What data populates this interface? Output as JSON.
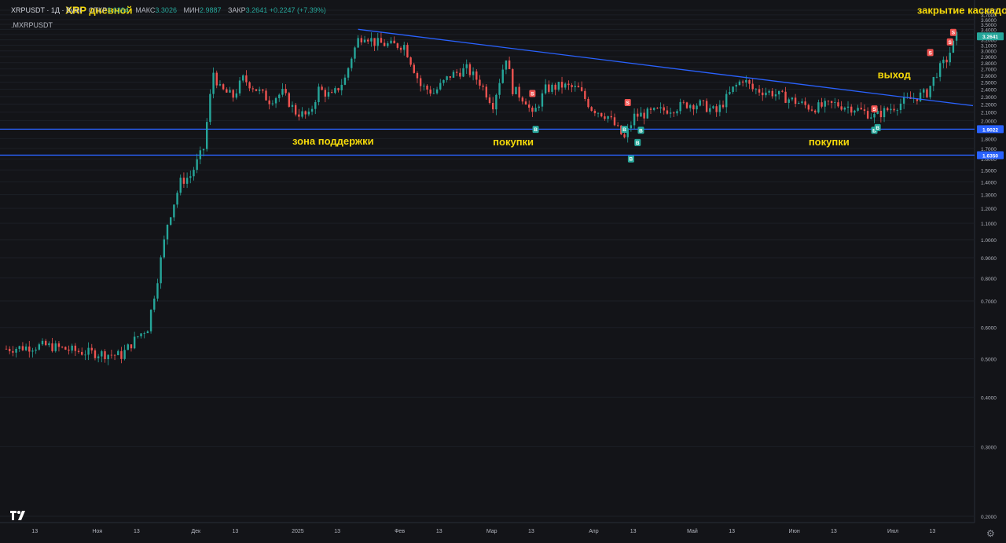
{
  "header": {
    "symbol_line": "XRPUSDT · 1Д · Bybit",
    "open_label": "ОТКР",
    "open_value": "3.0394",
    "high_label": "МАКС",
    "high_value": "3.3026",
    "low_label": "МИН",
    "low_value": "2.9887",
    "close_label": "ЗАКР",
    "close_value": "3.2641",
    "change": "+0.2247 (+7.39%)",
    "secondary_symbol": ".MXRPUSDT"
  },
  "colors": {
    "up": "#26a69a",
    "down": "#ef5350",
    "line": "#2962ff",
    "note": "#f5d90a",
    "bg": "#131418"
  },
  "icons": {
    "logo": "tradingview-logo",
    "settings": "gear-icon"
  },
  "chart_data": {
    "type": "candlestick",
    "y_scale": "log",
    "ylim": [
      0.2,
      3.8
    ],
    "y_ticks": [
      "3.8000",
      "3.7000",
      "3.6000",
      "3.5000",
      "3.4000",
      "3.3000",
      "3.2000",
      "3.1000",
      "3.0000",
      "2.9000",
      "2.8000",
      "2.7000",
      "2.6000",
      "2.5000",
      "2.4000",
      "2.3000",
      "2.2000",
      "2.1000",
      "2.0000",
      "1.9000",
      "1.8000",
      "1.7000",
      "1.6000",
      "1.5000",
      "1.4000",
      "1.3000",
      "1.2000",
      "1.1000",
      "1.0000",
      "0.9000",
      "0.8000",
      "0.7000",
      "0.6000",
      "0.5000",
      "0.4000",
      "0.3000",
      "0.2000"
    ],
    "x_ticks": [
      "13",
      "Ноя",
      "13",
      "Дек",
      "13",
      "2025",
      "13",
      "Фев",
      "13",
      "Мар",
      "13",
      "Апр",
      "13",
      "Май",
      "13",
      "Июн",
      "13",
      "Июл",
      "13"
    ],
    "current_price": "3.2641",
    "support_levels": [
      "1.9022",
      "1.6350"
    ],
    "series_path": [
      [
        "2024-10-01",
        0.53
      ],
      [
        "2024-10-13",
        0.54
      ],
      [
        "2024-10-24",
        0.52
      ],
      [
        "2024-11-05",
        0.51
      ],
      [
        "2024-11-10",
        0.57
      ],
      [
        "2024-11-13",
        0.6
      ],
      [
        "2024-11-16",
        0.8
      ],
      [
        "2024-11-19",
        1.1
      ],
      [
        "2024-11-23",
        1.4
      ],
      [
        "2024-11-26",
        1.45
      ],
      [
        "2024-11-30",
        1.7
      ],
      [
        "2024-12-02",
        2.3
      ],
      [
        "2024-12-03",
        2.65
      ],
      [
        "2024-12-05",
        2.4
      ],
      [
        "2024-12-09",
        2.3
      ],
      [
        "2024-12-12",
        2.55
      ],
      [
        "2024-12-16",
        2.4
      ],
      [
        "2024-12-20",
        2.25
      ],
      [
        "2024-12-24",
        2.35
      ],
      [
        "2024-12-28",
        2.1
      ],
      [
        "2025-01-01",
        2.05
      ],
      [
        "2025-01-04",
        2.4
      ],
      [
        "2025-01-08",
        2.3
      ],
      [
        "2025-01-12",
        2.55
      ],
      [
        "2025-01-14",
        2.9
      ],
      [
        "2025-01-16",
        3.2
      ],
      [
        "2025-01-18",
        3.3
      ],
      [
        "2025-01-21",
        3.15
      ],
      [
        "2025-01-26",
        3.1
      ],
      [
        "2025-01-30",
        3.1
      ],
      [
        "2025-02-02",
        2.7
      ],
      [
        "2025-02-04",
        2.45
      ],
      [
        "2025-02-08",
        2.35
      ],
      [
        "2025-02-13",
        2.6
      ],
      [
        "2025-02-18",
        2.7
      ],
      [
        "2025-02-22",
        2.5
      ],
      [
        "2025-02-26",
        2.2
      ],
      [
        "2025-03-02",
        2.9
      ],
      [
        "2025-03-04",
        2.4
      ],
      [
        "2025-03-08",
        2.25
      ],
      [
        "2025-03-10",
        2.05
      ],
      [
        "2025-03-14",
        2.4
      ],
      [
        "2025-03-19",
        2.45
      ],
      [
        "2025-03-24",
        2.4
      ],
      [
        "2025-03-28",
        2.15
      ],
      [
        "2025-04-02",
        2.05
      ],
      [
        "2025-04-07",
        1.8
      ],
      [
        "2025-04-10",
        2.05
      ],
      [
        "2025-04-16",
        2.1
      ],
      [
        "2025-04-22",
        2.15
      ],
      [
        "2025-04-26",
        2.2
      ],
      [
        "2025-04-30",
        2.2
      ],
      [
        "2025-05-05",
        2.1
      ],
      [
        "2025-05-10",
        2.4
      ],
      [
        "2025-05-13",
        2.55
      ],
      [
        "2025-05-16",
        2.4
      ],
      [
        "2025-05-22",
        2.35
      ],
      [
        "2025-05-28",
        2.25
      ],
      [
        "2025-06-03",
        2.15
      ],
      [
        "2025-06-10",
        2.2
      ],
      [
        "2025-06-16",
        2.15
      ],
      [
        "2025-06-22",
        2.05
      ],
      [
        "2025-06-27",
        2.15
      ],
      [
        "2025-07-02",
        2.25
      ],
      [
        "2025-07-08",
        2.35
      ],
      [
        "2025-07-11",
        2.65
      ],
      [
        "2025-07-14",
        2.85
      ],
      [
        "2025-07-17",
        3.26
      ]
    ],
    "trend_line": [
      [
        "2025-01-16",
        3.4
      ],
      [
        "2025-07-22",
        2.18
      ]
    ],
    "markers": [
      {
        "label": "B",
        "date": "2025-03-11",
        "price": 1.9
      },
      {
        "label": "S",
        "date": "2025-03-10",
        "price": 2.34
      },
      {
        "label": "B",
        "date": "2025-04-07",
        "price": 1.9
      },
      {
        "label": "S",
        "date": "2025-04-08",
        "price": 2.22
      },
      {
        "label": "B",
        "date": "2025-04-09",
        "price": 1.6
      },
      {
        "label": "B",
        "date": "2025-04-11",
        "price": 1.76
      },
      {
        "label": "B",
        "date": "2025-04-12",
        "price": 1.89
      },
      {
        "label": "S",
        "date": "2025-06-22",
        "price": 2.14
      },
      {
        "label": "B",
        "date": "2025-06-22",
        "price": 1.89
      },
      {
        "label": "B",
        "date": "2025-06-23",
        "price": 1.92
      },
      {
        "label": "S",
        "date": "2025-07-09",
        "price": 2.97
      },
      {
        "label": "S",
        "date": "2025-07-15",
        "price": 3.16
      },
      {
        "label": "S",
        "date": "2025-07-16",
        "price": 3.34
      }
    ],
    "annotations": [
      {
        "text": "XRP дневной",
        "date": "2024-10-19",
        "price": 3.72
      },
      {
        "text": "закрытие каскадом",
        "date": "2025-07-05",
        "price": 3.72
      },
      {
        "text": "выход",
        "date": "2025-06-23",
        "price": 2.56
      },
      {
        "text": "зона поддержки",
        "date": "2024-12-27",
        "price": 1.74
      },
      {
        "text": "покупки",
        "date": "2025-02-26",
        "price": 1.73
      },
      {
        "text": "покупки",
        "date": "2025-06-02",
        "price": 1.73
      }
    ]
  }
}
